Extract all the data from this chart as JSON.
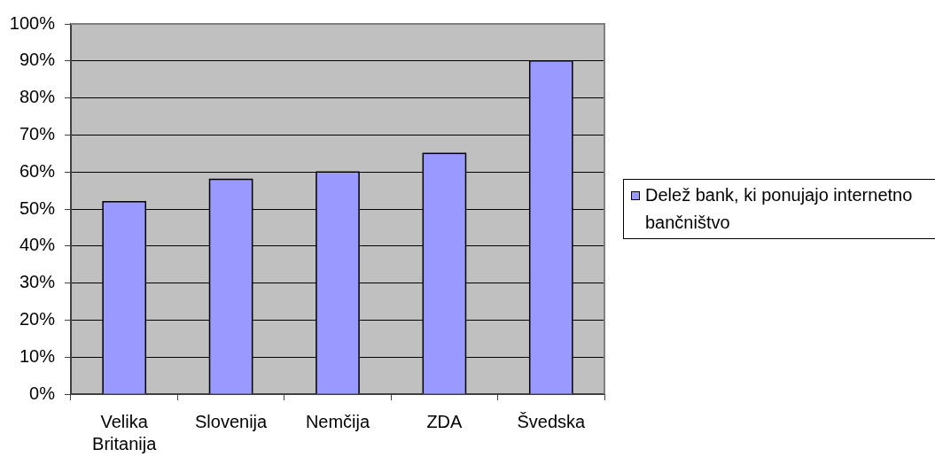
{
  "chart_data": {
    "type": "bar",
    "categories": [
      "Velika Britanija",
      "Slovenija",
      "Nemčija",
      "ZDA",
      "Švedska"
    ],
    "series": [
      {
        "name": "Delež bank, ki ponujajo internetno bančništvo",
        "color": "#9999ff",
        "values": [
          52,
          58,
          60,
          65,
          90
        ]
      }
    ],
    "ylim": [
      0,
      100
    ],
    "yticks": [
      {
        "value": 0,
        "label": "0%"
      },
      {
        "value": 10,
        "label": "10%"
      },
      {
        "value": 20,
        "label": "20%"
      },
      {
        "value": 30,
        "label": "30%"
      },
      {
        "value": 40,
        "label": "40%"
      },
      {
        "value": 50,
        "label": "50%"
      },
      {
        "value": 60,
        "label": "60%"
      },
      {
        "value": 70,
        "label": "70%"
      },
      {
        "value": 80,
        "label": "80%"
      },
      {
        "value": 90,
        "label": "90%"
      },
      {
        "value": 100,
        "label": "100%"
      }
    ],
    "grid": "y",
    "legend": "right"
  }
}
